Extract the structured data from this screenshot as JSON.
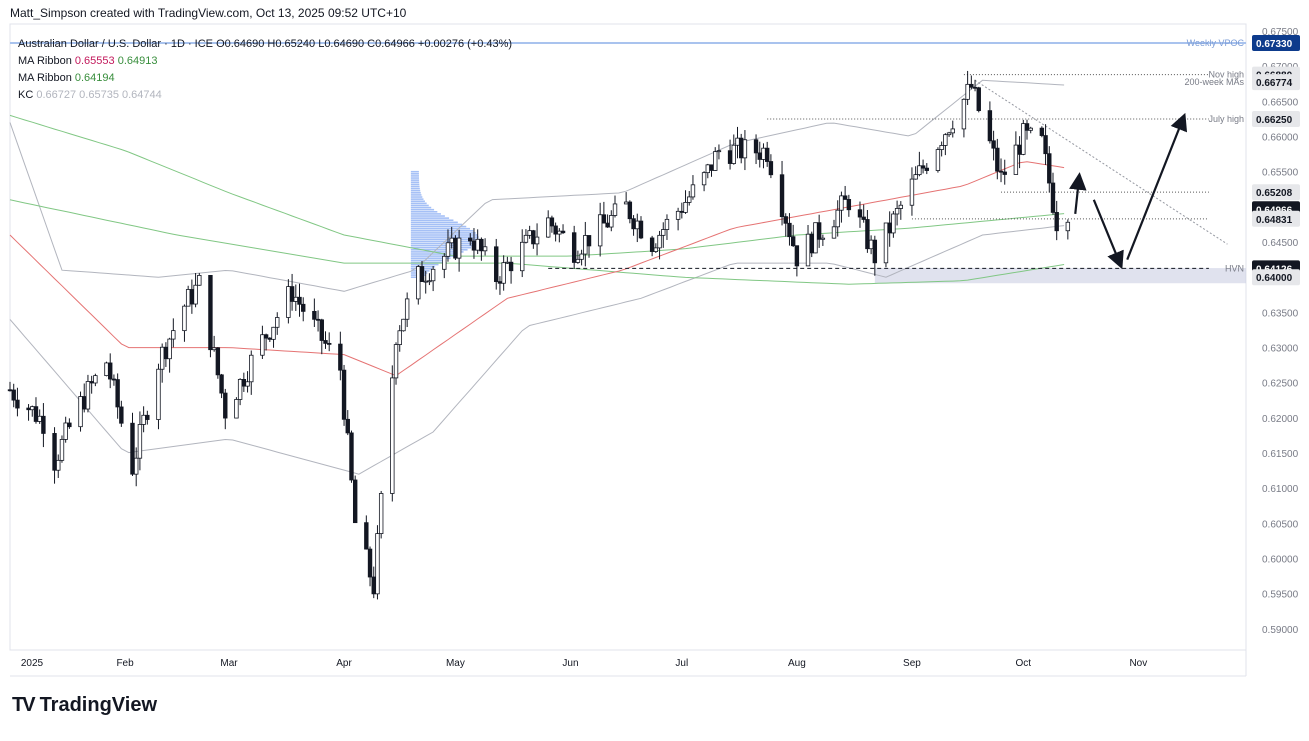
{
  "attribution": "Matt_Simpson created with TradingView.com, Oct 13, 2025 09:52 UTC+10",
  "brand": {
    "logo": "TV",
    "name": "TradingView"
  },
  "legend": {
    "symbol": "Australian Dollar / U.S. Dollar · 1D · ICE",
    "ohlc": "O0.64690  H0.65240  L0.64690  C0.64966  +0.00276 (+0.43%)",
    "ma_ribbon_1": {
      "label": "MA Ribbon",
      "v1": "0.65553",
      "v2": "0.64913"
    },
    "ma_ribbon_2": {
      "label": "MA Ribbon",
      "v1": "0.64194"
    },
    "kc": {
      "label": "KC",
      "v1": "0.66727",
      "v2": "0.65735",
      "v3": "0.64744"
    }
  },
  "colors": {
    "up": "#131722",
    "down": "#131722",
    "ma_fast": "#e57373",
    "ma_slow": "#81c784",
    "kc": "#b2b5be",
    "volume_profile": "#5b8def",
    "vpoc": "#2962ff",
    "label_dark": "#131722",
    "label_blue": "#0d3b8c"
  },
  "chart_data": {
    "type": "candlestick",
    "title": "Australian Dollar / U.S. Dollar · 1D · ICE",
    "x_range": [
      "2025-01-01",
      "2025-11-30"
    ],
    "y_range": [
      0.587,
      0.676
    ],
    "x_ticks": [
      "2025",
      "Feb",
      "Mar",
      "Apr",
      "May",
      "Jun",
      "Jul",
      "Aug",
      "Sep",
      "Oct",
      "Nov"
    ],
    "y_ticks": [
      "0.59000",
      "0.59500",
      "0.60000",
      "0.60500",
      "0.61000",
      "0.61500",
      "0.62000",
      "0.62500",
      "0.63000",
      "0.63500",
      "0.64000",
      "0.64500",
      "0.65000",
      "0.65500",
      "0.66000",
      "0.66500",
      "0.67000",
      "0.67500"
    ],
    "price_labels": [
      {
        "value": "0.67330",
        "text": "Weekly VPOC",
        "style": "blue"
      },
      {
        "value": "0.66880",
        "text": "Nov high",
        "style": "light"
      },
      {
        "value": "0.66774",
        "text": "200-week MAs",
        "style": "light"
      },
      {
        "value": "0.66250",
        "text": "July high",
        "style": "light"
      },
      {
        "value": "0.65208",
        "text": "",
        "style": "light"
      },
      {
        "value": "0.64966",
        "text": "",
        "style": "dark"
      },
      {
        "value": "0.64831",
        "text": "",
        "style": "light"
      },
      {
        "value": "0.64126",
        "text": "HVN",
        "style": "dark"
      },
      {
        "value": "0.64000",
        "text": "",
        "style": "light"
      }
    ],
    "anchors": [
      {
        "date": "2025-01-01",
        "close": 0.624
      },
      {
        "date": "2025-01-10",
        "close": 0.6195
      },
      {
        "date": "2025-01-13",
        "close": 0.614
      },
      {
        "date": "2025-01-20",
        "close": 0.622
      },
      {
        "date": "2025-01-27",
        "close": 0.628
      },
      {
        "date": "2025-02-03",
        "close": 0.613
      },
      {
        "date": "2025-02-10",
        "close": 0.628
      },
      {
        "date": "2025-02-17",
        "close": 0.636
      },
      {
        "date": "2025-02-21",
        "close": 0.639
      },
      {
        "date": "2025-02-28",
        "close": 0.621
      },
      {
        "date": "2025-03-10",
        "close": 0.631
      },
      {
        "date": "2025-03-18",
        "close": 0.638
      },
      {
        "date": "2025-03-31",
        "close": 0.627
      },
      {
        "date": "2025-04-04",
        "close": 0.605
      },
      {
        "date": "2025-04-09",
        "close": 0.596
      },
      {
        "date": "2025-04-15",
        "close": 0.632
      },
      {
        "date": "2025-04-21",
        "close": 0.64
      },
      {
        "date": "2025-05-05",
        "close": 0.646
      },
      {
        "date": "2025-05-12",
        "close": 0.64
      },
      {
        "date": "2025-05-26",
        "close": 0.648
      },
      {
        "date": "2025-06-02",
        "close": 0.644
      },
      {
        "date": "2025-06-16",
        "close": 0.65
      },
      {
        "date": "2025-06-23",
        "close": 0.645
      },
      {
        "date": "2025-07-07",
        "close": 0.654
      },
      {
        "date": "2025-07-11",
        "close": 0.658
      },
      {
        "date": "2025-07-24",
        "close": 0.658
      },
      {
        "date": "2025-08-01",
        "close": 0.643
      },
      {
        "date": "2025-08-15",
        "close": 0.651
      },
      {
        "date": "2025-08-22",
        "close": 0.643
      },
      {
        "date": "2025-09-01",
        "close": 0.653
      },
      {
        "date": "2025-09-17",
        "close": 0.667
      },
      {
        "date": "2025-09-25",
        "close": 0.654
      },
      {
        "date": "2025-10-01",
        "close": 0.66
      },
      {
        "date": "2025-10-06",
        "close": 0.659
      },
      {
        "date": "2025-10-10",
        "close": 0.648
      },
      {
        "date": "2025-10-13",
        "close": 0.6497
      }
    ],
    "ma_fast_anchors": [
      {
        "date": "2025-01-01",
        "value": 0.646
      },
      {
        "date": "2025-02-01",
        "value": 0.63
      },
      {
        "date": "2025-03-01",
        "value": 0.63
      },
      {
        "date": "2025-04-01",
        "value": 0.629
      },
      {
        "date": "2025-04-15",
        "value": 0.626
      },
      {
        "date": "2025-05-15",
        "value": 0.637
      },
      {
        "date": "2025-06-15",
        "value": 0.641
      },
      {
        "date": "2025-07-15",
        "value": 0.647
      },
      {
        "date": "2025-08-15",
        "value": 0.65
      },
      {
        "date": "2025-09-15",
        "value": 0.653
      },
      {
        "date": "2025-10-01",
        "value": 0.6565
      },
      {
        "date": "2025-10-13",
        "value": 0.6555
      }
    ],
    "ma_slow_anchors": [
      {
        "date": "2025-01-01",
        "value": 0.663
      },
      {
        "date": "2025-02-01",
        "value": 0.658
      },
      {
        "date": "2025-03-01",
        "value": 0.652
      },
      {
        "date": "2025-04-01",
        "value": 0.646
      },
      {
        "date": "2025-05-01",
        "value": 0.643
      },
      {
        "date": "2025-06-01",
        "value": 0.643
      },
      {
        "date": "2025-07-01",
        "value": 0.644
      },
      {
        "date": "2025-08-01",
        "value": 0.646
      },
      {
        "date": "2025-09-01",
        "value": 0.647
      },
      {
        "date": "2025-10-01",
        "value": 0.6485
      },
      {
        "date": "2025-10-13",
        "value": 0.6491
      }
    ],
    "ma_long_anchors": [
      {
        "date": "2025-01-01",
        "value": 0.651
      },
      {
        "date": "2025-02-15",
        "value": 0.646
      },
      {
        "date": "2025-04-01",
        "value": 0.642
      },
      {
        "date": "2025-05-15",
        "value": 0.642
      },
      {
        "date": "2025-07-01",
        "value": 0.64
      },
      {
        "date": "2025-08-15",
        "value": 0.639
      },
      {
        "date": "2025-09-15",
        "value": 0.6395
      },
      {
        "date": "2025-10-13",
        "value": 0.6419
      }
    ],
    "kc_upper_anchors": [
      {
        "date": "2025-01-01",
        "value": 0.662
      },
      {
        "date": "2025-01-15",
        "value": 0.641
      },
      {
        "date": "2025-02-10",
        "value": 0.64
      },
      {
        "date": "2025-03-01",
        "value": 0.641
      },
      {
        "date": "2025-04-01",
        "value": 0.638
      },
      {
        "date": "2025-04-20",
        "value": 0.641
      },
      {
        "date": "2025-05-10",
        "value": 0.651
      },
      {
        "date": "2025-06-15",
        "value": 0.652
      },
      {
        "date": "2025-07-15",
        "value": 0.659
      },
      {
        "date": "2025-08-10",
        "value": 0.662
      },
      {
        "date": "2025-09-01",
        "value": 0.66
      },
      {
        "date": "2025-09-20",
        "value": 0.668
      },
      {
        "date": "2025-10-13",
        "value": 0.6673
      }
    ],
    "kc_lower_anchors": [
      {
        "date": "2025-01-01",
        "value": 0.634
      },
      {
        "date": "2025-02-01",
        "value": 0.615
      },
      {
        "date": "2025-03-01",
        "value": 0.617
      },
      {
        "date": "2025-04-05",
        "value": 0.612
      },
      {
        "date": "2025-04-25",
        "value": 0.618
      },
      {
        "date": "2025-05-20",
        "value": 0.633
      },
      {
        "date": "2025-06-20",
        "value": 0.637
      },
      {
        "date": "2025-07-15",
        "value": 0.642
      },
      {
        "date": "2025-08-10",
        "value": 0.642
      },
      {
        "date": "2025-08-25",
        "value": 0.64
      },
      {
        "date": "2025-09-20",
        "value": 0.646
      },
      {
        "date": "2025-10-13",
        "value": 0.6474
      }
    ],
    "levels": [
      {
        "value": 0.6733,
        "from": "2025-01-01",
        "to": "2025-11-30",
        "style": "vpoc"
      },
      {
        "value": 0.6688,
        "from": "2025-09-15",
        "to": "2025-11-20",
        "style": "dotted"
      },
      {
        "value": 0.6625,
        "from": "2025-07-24",
        "to": "2025-11-20",
        "style": "dotted"
      },
      {
        "value": 0.6521,
        "from": "2025-09-25",
        "to": "2025-11-20",
        "style": "dotted"
      },
      {
        "value": 0.6483,
        "from": "2025-09-01",
        "to": "2025-11-20",
        "style": "dotted"
      },
      {
        "value": 0.64126,
        "from": "2025-05-26",
        "to": "2025-11-20",
        "style": "dashed"
      }
    ],
    "hvn_zone": {
      "from": "2025-08-22",
      "to": "2025-11-30",
      "top": 0.6413,
      "bottom": 0.64
    },
    "trendline": {
      "from": {
        "date": "2025-09-18",
        "value": 0.668
      },
      "to": {
        "date": "2025-11-25",
        "value": 0.6447
      }
    },
    "arrows": [
      {
        "from": {
          "date": "2025-10-15",
          "value": 0.649
        },
        "to": {
          "date": "2025-10-16",
          "value": 0.654
        }
      },
      {
        "from": {
          "date": "2025-10-20",
          "value": 0.651
        },
        "to": {
          "date": "2025-10-27",
          "value": 0.642
        }
      },
      {
        "from": {
          "date": "2025-10-29",
          "value": 0.6425
        },
        "to": {
          "date": "2025-11-13",
          "value": 0.6625
        }
      }
    ],
    "volume_profile": {
      "date": "2025-04-19",
      "from_value": 0.64,
      "to_value": 0.655
    }
  }
}
